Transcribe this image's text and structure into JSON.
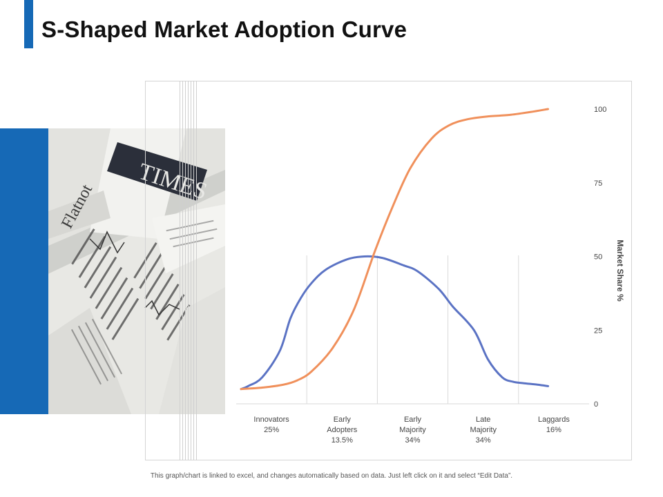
{
  "slide": {
    "title": "S-Shaped Market Adoption Curve",
    "footer_note": "This graph/chart is linked to excel, and changes automatically based on data. Just left click on it and select “Edit Data”.",
    "accent_color": "#1669b6",
    "photo": "newspaper-photo"
  },
  "chart_data": {
    "type": "line",
    "ylabel": "Market Share %",
    "ylim": [
      0,
      100
    ],
    "y_ticks": [
      "0",
      "25",
      "50",
      "75",
      "100"
    ],
    "y_axis_side": "right",
    "gridlines": "vertical",
    "legend": "none",
    "categories": [
      [
        "Innovators",
        "25%"
      ],
      [
        "Early",
        "Adopters",
        "13.5%"
      ],
      [
        "Early",
        "Majority",
        "34%"
      ],
      [
        "Late",
        "Majority",
        "34%"
      ],
      [
        "Laggards",
        "16%"
      ]
    ],
    "series": [
      {
        "color": "#5b73c4",
        "x": [
          0,
          0.1,
          0.3,
          0.55,
          0.7,
          0.85,
          1.0,
          1.2,
          1.5,
          1.75,
          2.0,
          2.3,
          2.5,
          2.8,
          3.0,
          3.3,
          3.5,
          3.7,
          3.85,
          4.0,
          4.2,
          4.35
        ],
        "y": [
          5,
          6,
          9,
          18,
          29,
          36,
          41,
          45.5,
          49,
          50,
          49.5,
          47,
          45,
          39,
          33,
          25,
          15,
          9,
          7.5,
          7,
          6.5,
          6
        ]
      },
      {
        "color": "#f0905b",
        "x": [
          0,
          0.3,
          0.6,
          0.8,
          1.0,
          1.3,
          1.6,
          1.9,
          2.15,
          2.4,
          2.7,
          2.95,
          3.2,
          3.5,
          3.8,
          4.1,
          4.35
        ],
        "y": [
          5,
          5.5,
          6.5,
          8,
          11,
          19,
          32,
          52,
          67,
          80,
          90,
          94.5,
          96.5,
          97.5,
          98,
          99,
          100
        ]
      }
    ]
  }
}
